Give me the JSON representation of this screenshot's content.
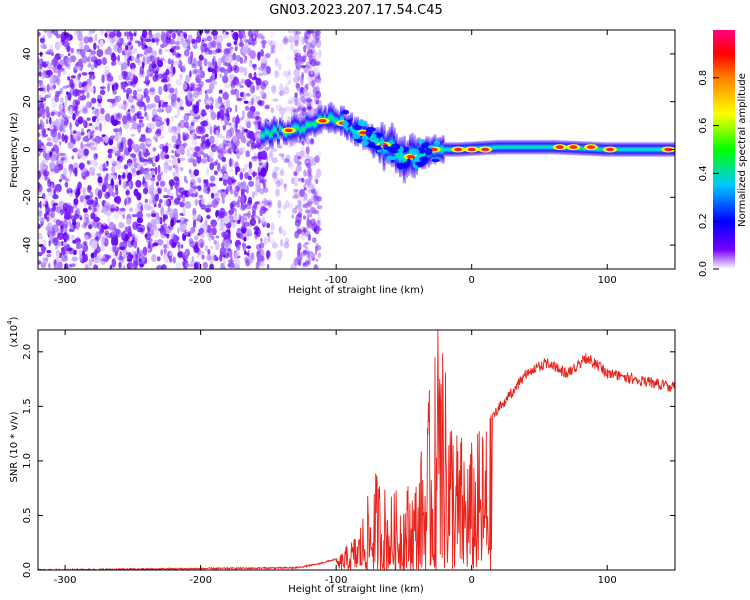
{
  "title": "GN03.2023.207.17.54.C45",
  "chart_data": [
    {
      "type": "heatmap",
      "xlabel": "Height of straight line (km)",
      "ylabel": "Frequency (Hz)",
      "xlim": [
        -320,
        150
      ],
      "ylim": [
        -50,
        50
      ],
      "xticks": [
        -300,
        -200,
        -100,
        0,
        100
      ],
      "yticks": [
        -40,
        -20,
        0,
        20,
        40
      ],
      "colorbar": {
        "label": "Normalized spectral amplitude",
        "range": [
          0.0,
          1.0
        ],
        "ticks": [
          0.0,
          0.2,
          0.4,
          0.6,
          0.8
        ],
        "colors": [
          "#ffffff",
          "#7700ff",
          "#0000ff",
          "#00c8ff",
          "#00ff00",
          "#ffff00",
          "#ff8000",
          "#ff0000",
          "#ff0080"
        ]
      },
      "regions": {
        "noise_x": [
          -320,
          -150
        ],
        "noise_patch_x": [
          -130,
          -112
        ],
        "signal_start_km": -155,
        "signal_center_hz": [
          [
            -155,
            7
          ],
          [
            -130,
            8
          ],
          [
            -115,
            12
          ],
          [
            -100,
            13
          ],
          [
            -90,
            10
          ],
          [
            -80,
            6
          ],
          [
            -70,
            3
          ],
          [
            -60,
            1
          ],
          [
            -50,
            -3
          ],
          [
            -40,
            -2
          ],
          [
            -30,
            0
          ],
          [
            -10,
            0
          ],
          [
            20,
            1
          ],
          [
            60,
            1
          ],
          [
            100,
            0
          ],
          [
            150,
            0
          ]
        ]
      }
    },
    {
      "type": "line",
      "xlabel": "Height of straight line (km)",
      "ylabel": "SNR (10 * v/v)",
      "ylabel_exponent": "(x10",
      "ylabel_exponent_power": "4",
      "xlim": [
        -320,
        150
      ],
      "ylim": [
        0,
        2.2
      ],
      "xticks": [
        -300,
        -200,
        -100,
        0,
        100
      ],
      "yticks": [
        "0.0",
        "0.5",
        "1.0",
        "1.5",
        "2.0"
      ],
      "color": "#e8231c",
      "envelope": [
        [
          -320,
          0.0
        ],
        [
          -130,
          0.02
        ],
        [
          -115,
          0.05
        ],
        [
          -100,
          0.1
        ],
        [
          -85,
          0.35
        ],
        [
          -70,
          0.95
        ],
        [
          -60,
          0.7
        ],
        [
          -50,
          0.8
        ],
        [
          -40,
          0.9
        ],
        [
          -25,
          2.2
        ],
        [
          -10,
          1.3
        ],
        [
          0,
          1.2
        ],
        [
          10,
          1.4
        ],
        [
          25,
          1.6
        ],
        [
          40,
          1.85
        ],
        [
          55,
          1.95
        ],
        [
          70,
          1.85
        ],
        [
          85,
          2.0
        ],
        [
          100,
          1.85
        ],
        [
          120,
          1.8
        ],
        [
          150,
          1.72
        ]
      ]
    }
  ]
}
